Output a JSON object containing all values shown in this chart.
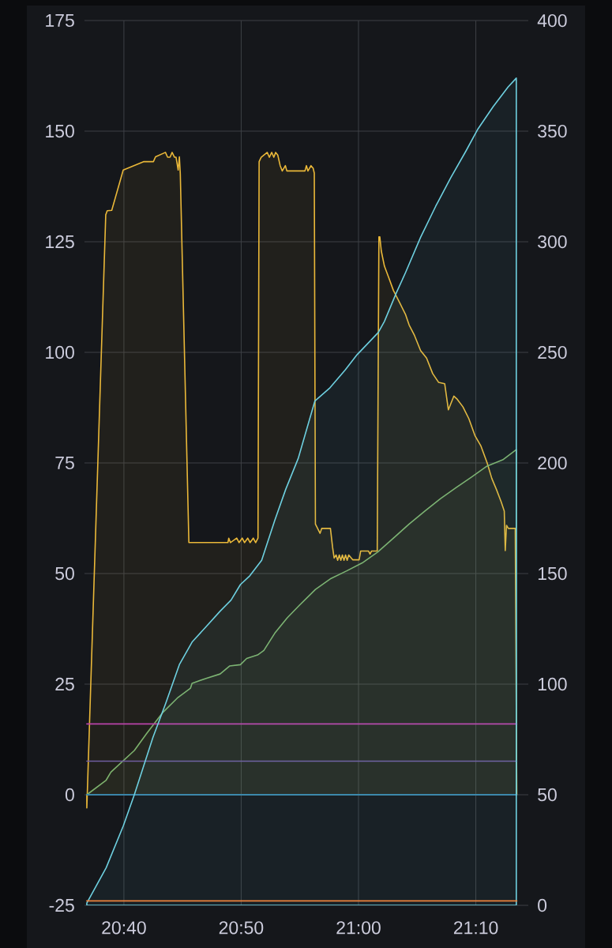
{
  "chart_data": {
    "type": "line",
    "grid": true,
    "xlim": [
      20.6107,
      21.2289
    ],
    "xticks": [
      {
        "value": 20.6667,
        "label": "20:40"
      },
      {
        "value": 20.8333,
        "label": "20:50"
      },
      {
        "value": 21.0,
        "label": "21:00"
      },
      {
        "value": 21.1667,
        "label": "21:10"
      }
    ],
    "ylim": [
      -25,
      175
    ],
    "yticks": [
      -25,
      0,
      25,
      50,
      75,
      100,
      125,
      150,
      175
    ],
    "y2lim": [
      0,
      400
    ],
    "y2ticks": [
      0,
      50,
      100,
      150,
      200,
      250,
      300,
      350,
      400
    ],
    "series": [
      {
        "type": "area",
        "color": "#eab839",
        "x": [
          20.614,
          20.6409,
          20.643,
          20.6494,
          20.6657,
          20.6945,
          20.7086,
          20.7116,
          20.7257,
          20.7288,
          20.7322,
          20.7352,
          20.7386,
          20.7408,
          20.7438,
          20.7455,
          20.7468,
          20.759,
          20.8145,
          20.8157,
          20.818,
          20.827,
          20.8303,
          20.8348,
          20.8381,
          20.8426,
          20.846,
          20.8505,
          20.8539,
          20.8572,
          20.8588,
          20.8617,
          20.8703,
          20.8733,
          20.8767,
          20.8797,
          20.8823,
          20.8853,
          20.8887,
          20.8917,
          20.8961,
          20.8982,
          20.9239,
          20.926,
          20.9282,
          20.9325,
          20.9356,
          20.9372,
          20.9388,
          20.9454,
          20.9477,
          20.9601,
          20.9632,
          20.9654,
          20.9682,
          20.9704,
          20.9727,
          20.9749,
          20.9771,
          20.9794,
          20.9816,
          20.9839,
          20.9861,
          20.992,
          21.0009,
          21.0031,
          21.0141,
          21.0164,
          21.0186,
          21.0266,
          21.029,
          21.0303,
          21.0324,
          21.0368,
          21.0432,
          21.0496,
          21.0582,
          21.0667,
          21.0719,
          21.0796,
          21.0882,
          21.0967,
          21.1054,
          21.1139,
          21.1225,
          21.1277,
          21.1354,
          21.1397,
          21.1483,
          21.1568,
          21.1654,
          21.174,
          21.1828,
          21.1894,
          21.196,
          21.2027,
          21.2071,
          21.2085,
          21.2103,
          21.2129,
          21.2227,
          21.2249
        ],
        "values": [
          -3,
          131.1,
          132,
          132.1,
          141.2,
          143.1,
          143.1,
          144.2,
          145.2,
          144.1,
          144.1,
          145.2,
          144.1,
          144.1,
          141.2,
          144.2,
          140.4,
          57,
          57,
          58,
          57,
          58,
          57,
          58,
          57,
          58,
          57,
          58,
          57,
          58,
          143.1,
          144.1,
          145.2,
          144.1,
          145.2,
          144.1,
          145.2,
          144.6,
          142.2,
          141,
          142.2,
          141,
          141,
          142.2,
          141,
          142.2,
          141.6,
          140.5,
          61.2,
          59.1,
          60.2,
          60.2,
          55.9,
          53.5,
          54.2,
          53,
          54.2,
          53,
          54.2,
          53,
          54.2,
          53,
          54.2,
          53.1,
          53.1,
          55.1,
          55.1,
          54.4,
          55.1,
          55.1,
          126.1,
          126.1,
          122.9,
          119.5,
          116.8,
          114,
          111.3,
          108.6,
          106.2,
          103.8,
          100.4,
          98.7,
          95.2,
          93.2,
          92.9,
          87,
          90.1,
          89.5,
          87.7,
          85,
          81.2,
          78.8,
          75,
          71.5,
          69,
          66.2,
          64.1,
          55.2,
          60.9,
          60.2,
          60.2,
          0
        ]
      },
      {
        "type": "area",
        "color": "#6ed0e0",
        "axis": "y2",
        "x": [
          20.614,
          20.6415,
          20.6659,
          20.6815,
          20.708,
          20.7257,
          20.7368,
          20.7457,
          20.7635,
          20.7835,
          20.8034,
          20.8189,
          20.8322,
          20.8456,
          20.8624,
          20.881,
          20.8965,
          20.9143,
          20.938,
          20.9595,
          20.9809,
          20.9981,
          21.0281,
          21.0368,
          21.0539,
          21.0667,
          21.0882,
          21.1096,
          21.1311,
          21.1526,
          21.1697,
          21.1911,
          21.2126,
          21.2242
        ],
        "values": [
          1,
          17,
          36,
          50,
          76,
          91,
          101,
          109,
          119,
          126,
          133,
          138,
          145,
          149,
          156,
          174,
          188,
          202,
          228,
          234,
          242,
          249,
          259,
          264,
          277,
          286,
          302,
          316,
          329,
          341,
          351,
          361,
          370,
          374
        ]
      },
      {
        "type": "area",
        "color": "#7eb26d",
        "x": [
          20.614,
          20.6415,
          20.6482,
          20.6815,
          20.6992,
          20.7214,
          20.7436,
          20.7613,
          20.7635,
          20.7835,
          20.8034,
          20.8168,
          20.8322,
          20.8411,
          20.8566,
          20.8655,
          20.881,
          20.8988,
          20.9165,
          20.9388,
          20.961,
          20.9832,
          21.0053,
          21.0275,
          21.0497,
          21.0719,
          21.094,
          21.1162,
          21.1384,
          21.1606,
          21.1827,
          21.2049,
          21.2242
        ],
        "values": [
          0,
          3.3,
          5.1,
          10,
          13.9,
          18.5,
          22,
          24.1,
          25.2,
          26.3,
          27.3,
          29.1,
          29.4,
          30.8,
          31.6,
          32.6,
          36.5,
          40,
          42.9,
          46.4,
          48.9,
          50.6,
          52.4,
          54.9,
          58,
          61.2,
          64.1,
          66.9,
          69.4,
          71.8,
          74.3,
          75.7,
          78
        ]
      },
      {
        "color": "#ba43a9",
        "x": [
          20.614,
          21.2249
        ],
        "values": [
          16,
          16
        ]
      },
      {
        "color": "#705da0",
        "x": [
          20.614,
          21.2249
        ],
        "values": [
          7.6,
          7.6
        ]
      },
      {
        "color": "#1f78c1",
        "x": [
          20.614,
          21.2249
        ],
        "values": [
          0,
          0
        ]
      },
      {
        "color": "#ef843c",
        "axis": "y2",
        "x": [
          20.614,
          21.2249
        ],
        "values": [
          2,
          2
        ]
      }
    ]
  }
}
